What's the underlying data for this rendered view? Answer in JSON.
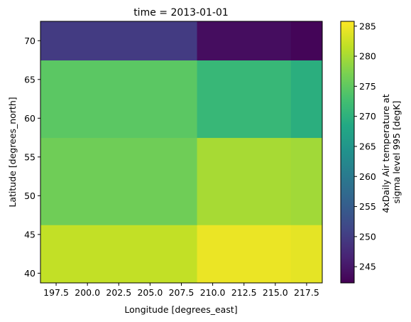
{
  "chart_data": {
    "type": "heatmap",
    "title": "time = 2013-01-01",
    "xlabel": "Longitude [degrees_east]",
    "ylabel": "Latitude [degrees_north]",
    "colorbar_label_lines": [
      "4xDaily Air temperature at",
      "sigma level 995 [degK]"
    ],
    "colormap": "viridis",
    "x_edges": [
      196.25,
      208.75,
      216.25,
      218.75
    ],
    "y_edges": [
      38.75,
      46.25,
      57.5,
      67.5,
      72.5
    ],
    "x_ticks": [
      197.5,
      200.0,
      202.5,
      205.0,
      207.5,
      210.0,
      212.5,
      215.0,
      217.5
    ],
    "x_tick_labels": [
      "197.5",
      "200.0",
      "202.5",
      "205.0",
      "207.5",
      "210.0",
      "212.5",
      "215.0",
      "217.5"
    ],
    "y_ticks": [
      40,
      45,
      50,
      55,
      60,
      65,
      70
    ],
    "y_tick_labels": [
      "40",
      "45",
      "50",
      "55",
      "60",
      "65",
      "70"
    ],
    "values": [
      [
        281.8,
        284.6,
        284.2
      ],
      [
        276.2,
        280.0,
        279.6
      ],
      [
        274.6,
        271.2,
        269.6
      ],
      [
        249.8,
        243.8,
        242.8
      ]
    ],
    "vmin": 242.3,
    "vmax": 285.8,
    "colorbar_ticks": [
      245,
      250,
      255,
      260,
      265,
      270,
      275,
      280,
      285
    ],
    "colorbar_tick_labels": [
      "245",
      "250",
      "255",
      "260",
      "265",
      "270",
      "275",
      "280",
      "285"
    ]
  }
}
